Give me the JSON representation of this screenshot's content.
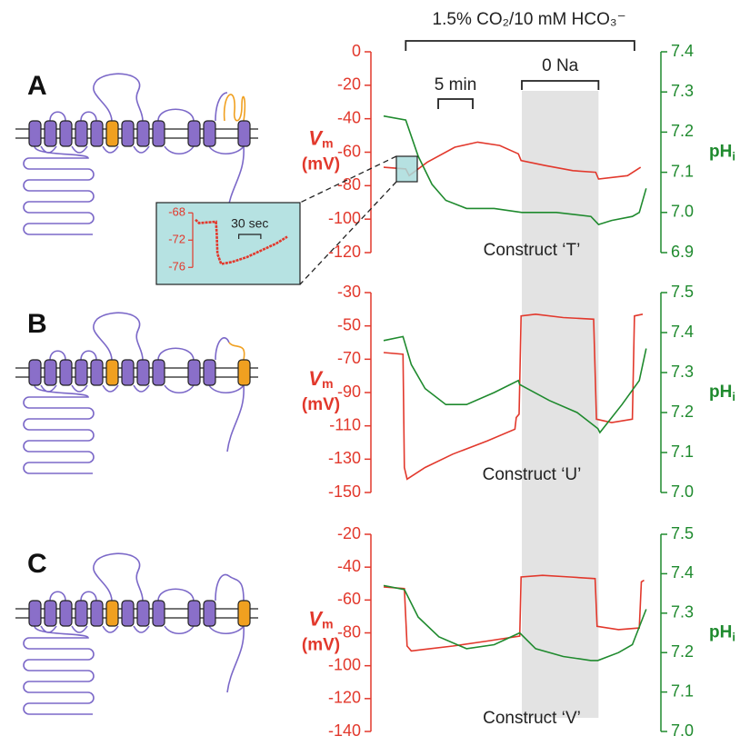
{
  "annotations": {
    "co2_label": "1.5% CO₂/10 mM HCO₃⁻",
    "co2_span": [
      3.2,
      36.3
    ],
    "zero_na_label": "0 Na",
    "zero_na_span": [
      20,
      31.1
    ],
    "scale_bar": {
      "label": "5 min",
      "length": 5
    }
  },
  "chart_data": [
    {
      "type": "line",
      "panel_label": "A",
      "caption": "Construct ‘T’",
      "ylabel": {
        "symbol": "V",
        "subscript": "m",
        "unit": "(mV)"
      },
      "y2label": {
        "symbol": "pH",
        "subscript": "i"
      },
      "xlim": [
        0,
        38
      ],
      "ylim": [
        -120,
        0
      ],
      "yticks": [
        0,
        -20,
        -40,
        -60,
        -80,
        -100,
        -120
      ],
      "y2lim": [
        6.9,
        7.4
      ],
      "y2ticks": [
        7.4,
        7.3,
        7.2,
        7.1,
        {
          "value": 7.0,
          "label": "7.0"
        },
        6.9
      ],
      "series": [
        {
          "color": "#e2382c",
          "x": [
            0,
            3.2,
            3.7,
            6.3,
            10.3,
            13.6,
            16.8,
            19.5,
            19.9,
            23.4,
            27.4,
            30.7,
            31.1,
            35.3,
            37.2
          ],
          "values": [
            -69,
            -70,
            -74,
            -66,
            -57,
            -54,
            -56,
            -61,
            -65,
            -68,
            -71,
            -72,
            -76,
            -74,
            -69
          ]
        },
        {
          "color": "#1f8a2e",
          "axis": "y2",
          "x": [
            0,
            3.2,
            5,
            7,
            9,
            12,
            16,
            20,
            25,
            30,
            31.1,
            33,
            36,
            37,
            38
          ],
          "values": [
            7.24,
            7.23,
            7.14,
            7.07,
            7.03,
            7.01,
            7.01,
            7.0,
            7.0,
            6.99,
            6.97,
            6.98,
            6.99,
            7.0,
            7.06
          ]
        }
      ],
      "inset": {
        "xlim": [
          0,
          130
        ],
        "ylim": [
          -78.5,
          -66.5
        ],
        "yticks": [
          -68,
          -72,
          -76
        ],
        "scale_bar": {
          "label": "30 sec",
          "length": 30
        },
        "series": [
          {
            "color": "#e2382c",
            "x": [
              0,
              5,
              28,
              29,
              30,
              35,
              50,
              70,
              90,
              110,
              125
            ],
            "values": [
              -69,
              -69.5,
              -69.3,
              -71,
              -74,
              -75.5,
              -75.2,
              -74.5,
              -73.5,
              -72.5,
              -71.5
            ]
          }
        ]
      }
    },
    {
      "type": "line",
      "panel_label": "B",
      "caption": "Construct ‘U’",
      "ylabel": {
        "symbol": "V",
        "subscript": "m",
        "unit": "(mV)"
      },
      "y2label": {
        "symbol": "pH",
        "subscript": "i"
      },
      "xlim": [
        0,
        38
      ],
      "ylim": [
        -150,
        -30
      ],
      "yticks": [
        -30,
        -50,
        -70,
        -90,
        -110,
        -130,
        -150
      ],
      "y2lim": [
        7.0,
        7.5
      ],
      "y2ticks": [
        7.5,
        7.4,
        7.3,
        7.2,
        7.1,
        {
          "value": 7.0,
          "label": "7.0"
        }
      ],
      "series": [
        {
          "color": "#e2382c",
          "x": [
            0,
            2.8,
            3.0,
            3.4,
            6,
            10,
            15,
            19,
            19.2,
            19.6,
            19.9,
            22,
            26,
            30.4,
            30.8,
            33,
            36,
            36.3,
            37.5
          ],
          "values": [
            -66,
            -67,
            -135,
            -142,
            -135,
            -127,
            -119,
            -112,
            -105,
            -103,
            -44,
            -43,
            -45,
            -46,
            -106,
            -108,
            -106,
            -44,
            -43
          ]
        },
        {
          "color": "#1f8a2e",
          "axis": "y2",
          "x": [
            0,
            2.8,
            4,
            6,
            9,
            12,
            16,
            19.5,
            19.7,
            24,
            28,
            31,
            31.3,
            34.5,
            37,
            38
          ],
          "values": [
            7.38,
            7.39,
            7.32,
            7.26,
            7.22,
            7.22,
            7.25,
            7.28,
            7.27,
            7.23,
            7.2,
            7.16,
            7.15,
            7.22,
            7.28,
            7.36
          ]
        }
      ]
    },
    {
      "type": "line",
      "panel_label": "C",
      "caption": "Construct ‘V’",
      "ylabel": {
        "symbol": "V",
        "subscript": "m",
        "unit": "(mV)"
      },
      "y2label": {
        "symbol": "pH",
        "subscript": "i"
      },
      "xlim": [
        0,
        38
      ],
      "ylim": [
        -140,
        -20
      ],
      "yticks": [
        -20,
        -40,
        -60,
        -80,
        -100,
        -120,
        -140
      ],
      "y2lim": [
        7.0,
        7.5
      ],
      "y2ticks": [
        7.5,
        7.4,
        7.3,
        7.2,
        7.1,
        {
          "value": 7.0,
          "label": "7.0"
        }
      ],
      "series": [
        {
          "color": "#e2382c",
          "x": [
            0,
            3.0,
            3.4,
            4,
            6,
            10,
            15,
            19.7,
            19.9,
            23,
            27,
            30.6,
            30.9,
            34,
            37,
            37.3,
            37.7
          ],
          "values": [
            -52,
            -53,
            -88,
            -91,
            -90,
            -88,
            -85,
            -82,
            -46,
            -45,
            -46,
            -47,
            -76,
            -78,
            -77,
            -49,
            -48
          ]
        },
        {
          "color": "#1f8a2e",
          "axis": "y2",
          "x": [
            0,
            3,
            5,
            8,
            12,
            16,
            19.7,
            22,
            26,
            30,
            31,
            34,
            36,
            38
          ],
          "values": [
            7.37,
            7.36,
            7.29,
            7.24,
            7.21,
            7.22,
            7.25,
            7.21,
            7.19,
            7.18,
            7.18,
            7.2,
            7.22,
            7.31
          ]
        }
      ]
    }
  ]
}
